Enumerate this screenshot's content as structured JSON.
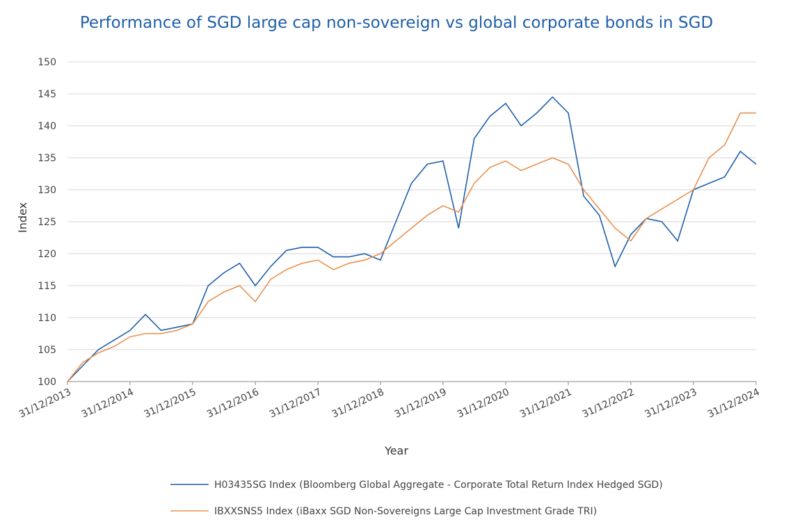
{
  "chart_data": {
    "type": "line",
    "title": "Performance of SGD large cap non-sovereign vs global corporate bonds in SGD",
    "x_label": "Year",
    "y_label": "Index",
    "x": [
      "31/12/2013",
      "31/03/2014",
      "30/06/2014",
      "30/09/2014",
      "31/12/2014",
      "31/03/2015",
      "30/06/2015",
      "30/09/2015",
      "31/12/2015",
      "31/03/2016",
      "30/06/2016",
      "30/09/2016",
      "31/12/2016",
      "31/03/2017",
      "30/06/2017",
      "30/09/2017",
      "31/12/2017",
      "31/03/2018",
      "30/06/2018",
      "30/09/2018",
      "31/12/2018",
      "31/03/2019",
      "30/06/2019",
      "30/09/2019",
      "31/12/2019",
      "31/03/2020",
      "30/06/2020",
      "30/09/2020",
      "31/12/2020",
      "31/03/2021",
      "30/06/2021",
      "30/09/2021",
      "31/12/2021",
      "31/03/2022",
      "30/06/2022",
      "30/09/2022",
      "31/12/2022",
      "31/03/2023",
      "30/06/2023",
      "30/09/2023",
      "31/12/2023",
      "31/03/2024",
      "30/06/2024",
      "30/09/2024",
      "31/12/2024"
    ],
    "series": [
      {
        "name": "H03435SG Index (Bloomberg Global Aggregate - Corporate Total Return Index Hedged SGD)",
        "color": "#1f5fa8",
        "values": [
          100,
          102.5,
          105,
          106.5,
          108,
          110.5,
          108,
          108.5,
          109,
          115,
          117,
          118.5,
          115,
          118,
          120.5,
          121,
          121,
          119.5,
          119.5,
          120,
          119,
          125,
          131,
          134,
          134.5,
          124,
          138,
          141.5,
          143.5,
          140,
          142,
          144.5,
          142,
          129,
          126,
          118,
          123,
          125.5,
          125,
          122,
          130,
          131,
          132,
          136,
          134
        ]
      },
      {
        "name": "IBXXSNS5 Index (iBaxx SGD Non-Sovereigns Large Cap Investment Grade TRI)",
        "color": "#e8904f",
        "values": [
          100,
          103,
          104.5,
          105.5,
          107,
          107.5,
          107.5,
          108,
          109,
          112.5,
          114,
          115,
          112.5,
          116,
          117.5,
          118.5,
          119,
          117.5,
          118.5,
          119,
          120,
          122,
          124,
          126,
          127.5,
          126.5,
          131,
          133.5,
          134.5,
          133,
          134,
          135,
          134,
          130,
          127,
          124,
          122,
          125.5,
          127,
          128.5,
          130,
          135,
          137,
          142,
          142
        ]
      }
    ],
    "xlim": [
      "31/12/2013",
      "31/12/2024"
    ],
    "xticks": [
      "31/12/2013",
      "31/12/2014",
      "31/12/2015",
      "31/12/2016",
      "31/12/2017",
      "31/12/2018",
      "31/12/2019",
      "31/12/2020",
      "31/12/2021",
      "31/12/2022",
      "31/12/2023",
      "31/12/2024"
    ],
    "ylim": [
      100,
      150
    ],
    "yticks": [
      100,
      105,
      110,
      115,
      120,
      125,
      130,
      135,
      140,
      145,
      150
    ],
    "grid": true
  }
}
